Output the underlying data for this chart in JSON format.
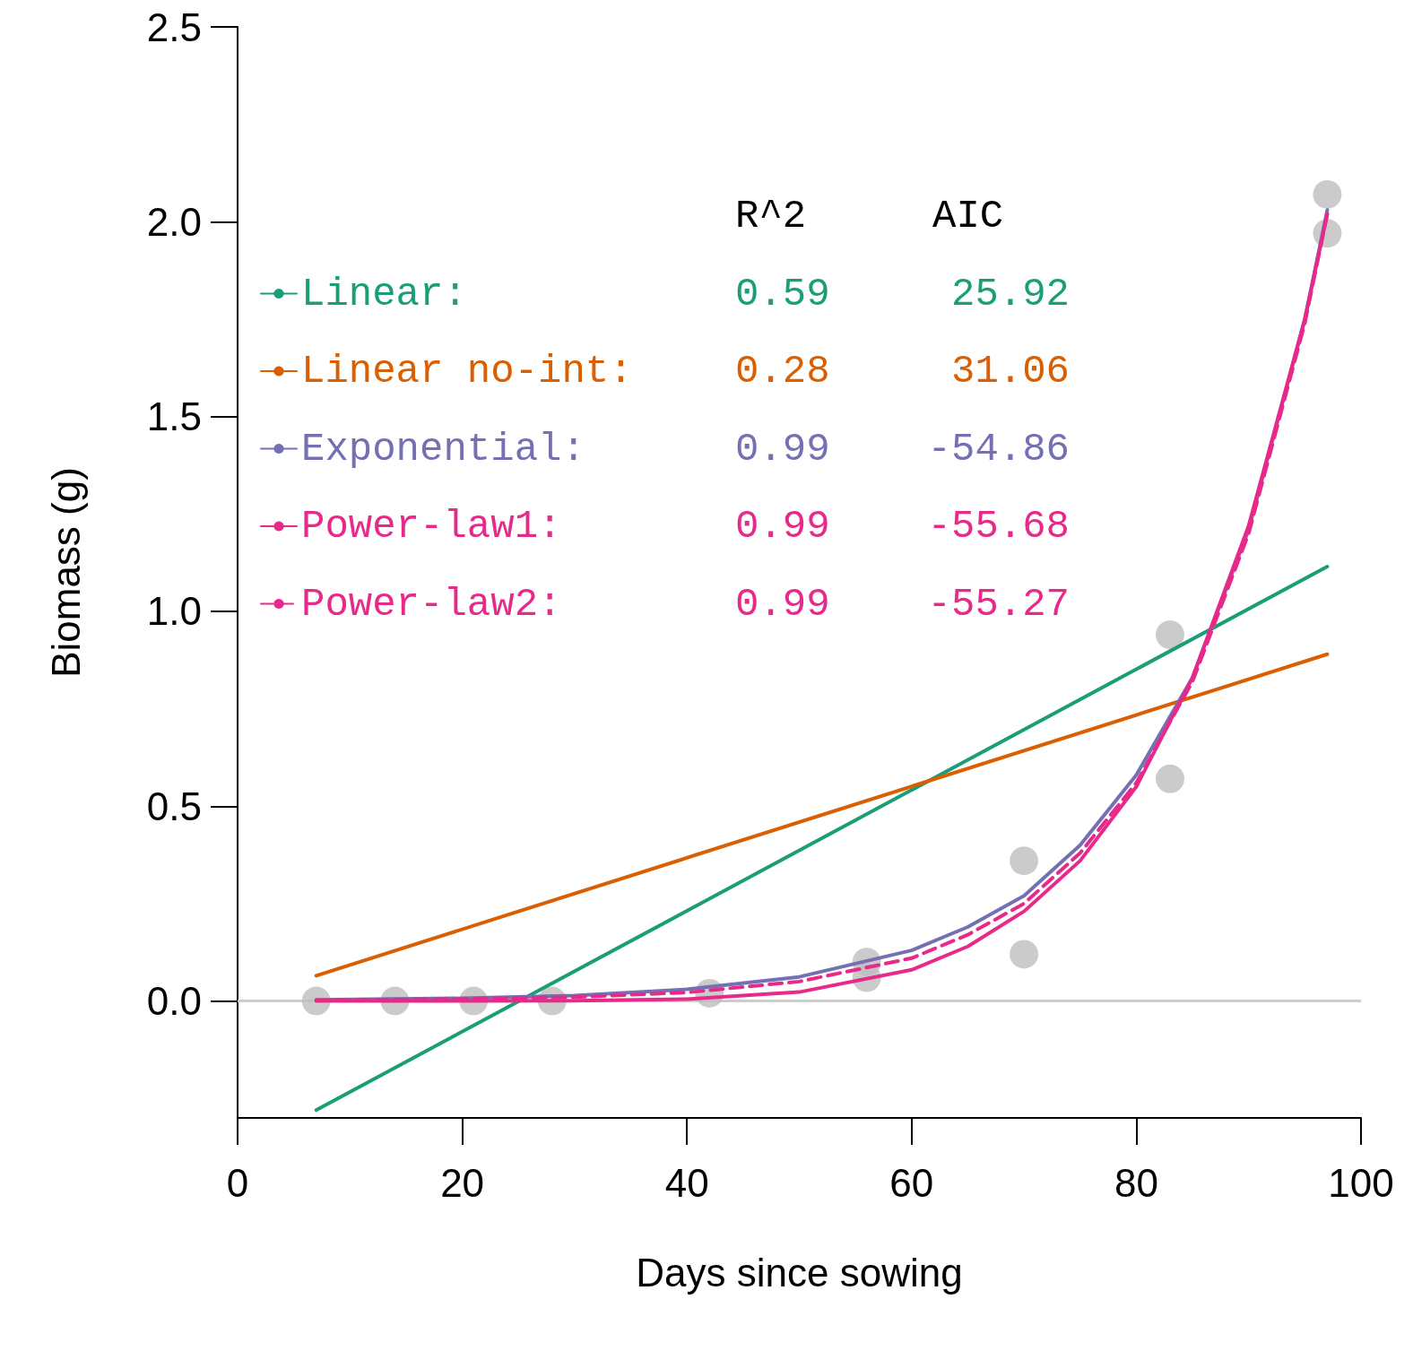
{
  "chart_data": {
    "type": "line",
    "xlabel": "Days since sowing",
    "ylabel": "Biomass (g)",
    "xlim": [
      0,
      100
    ],
    "xticks": [
      0,
      20,
      40,
      60,
      80,
      100
    ],
    "ylim": [
      -0.3,
      2.5
    ],
    "yticks": [
      {
        "value": 0,
        "label": "0.0"
      },
      {
        "value": 0.5,
        "label": "0.5"
      },
      {
        "value": 1,
        "label": "1.0"
      },
      {
        "value": 1.5,
        "label": "1.5"
      },
      {
        "value": 2,
        "label": "2.0"
      },
      {
        "value": 2.5,
        "label": "2.5"
      }
    ],
    "grid": false,
    "legend": "top left",
    "ref_lines": [
      {
        "axis": "y",
        "value": 0,
        "color": "#cccccc"
      }
    ],
    "series": [
      {
        "type": "scatter",
        "marker": "circle",
        "color": "#bebebe",
        "x": [
          7,
          14,
          21,
          28,
          42,
          56,
          56,
          70,
          70,
          83,
          83,
          97,
          97
        ],
        "values": [
          0,
          0,
          0,
          0,
          0.02,
          0.1,
          0.06,
          0.36,
          0.12,
          0.94,
          0.57,
          2.07,
          1.97
        ]
      },
      {
        "name": "Linear:",
        "color": "#1b9e77",
        "x": [
          7,
          97
        ],
        "values": [
          -0.28,
          1.115
        ]
      },
      {
        "name": "Linear no-int:",
        "color": "#d95f02",
        "x": [
          7,
          97
        ],
        "values": [
          0.065,
          0.89
        ]
      },
      {
        "name": "Exponential:",
        "color": "#7570b3",
        "x": [
          7,
          20,
          30,
          40,
          50,
          60,
          65,
          70,
          75,
          80,
          85,
          90,
          95,
          97
        ],
        "values": [
          0.003,
          0.007,
          0.014,
          0.03,
          0.062,
          0.13,
          0.19,
          0.27,
          0.4,
          0.58,
          0.83,
          1.21,
          1.75,
          2.03
        ]
      },
      {
        "name": "Power-law1:",
        "color": "#e7298a",
        "x": [
          7,
          20,
          30,
          40,
          50,
          60,
          65,
          70,
          75,
          80,
          85,
          90,
          95,
          97
        ],
        "values": [
          0,
          0,
          0.001,
          0.005,
          0.023,
          0.08,
          0.14,
          0.23,
          0.36,
          0.55,
          0.83,
          1.22,
          1.75,
          2.02
        ]
      },
      {
        "name": "Power-law2:",
        "color": "#e7298a",
        "line_style": "dashed",
        "x": [
          7,
          20,
          30,
          40,
          50,
          60,
          65,
          70,
          75,
          80,
          85,
          90,
          95,
          97
        ],
        "values": [
          0.002,
          0.005,
          0.01,
          0.022,
          0.05,
          0.11,
          0.17,
          0.25,
          0.38,
          0.56,
          0.82,
          1.2,
          1.74,
          2.02
        ]
      }
    ],
    "annotations": [
      "R^2",
      "AIC",
      "0.59",
      "25.92",
      "0.28",
      "31.06",
      "0.99",
      "-54.86",
      "0.99",
      "-55.68",
      "0.99",
      "-55.27"
    ]
  }
}
